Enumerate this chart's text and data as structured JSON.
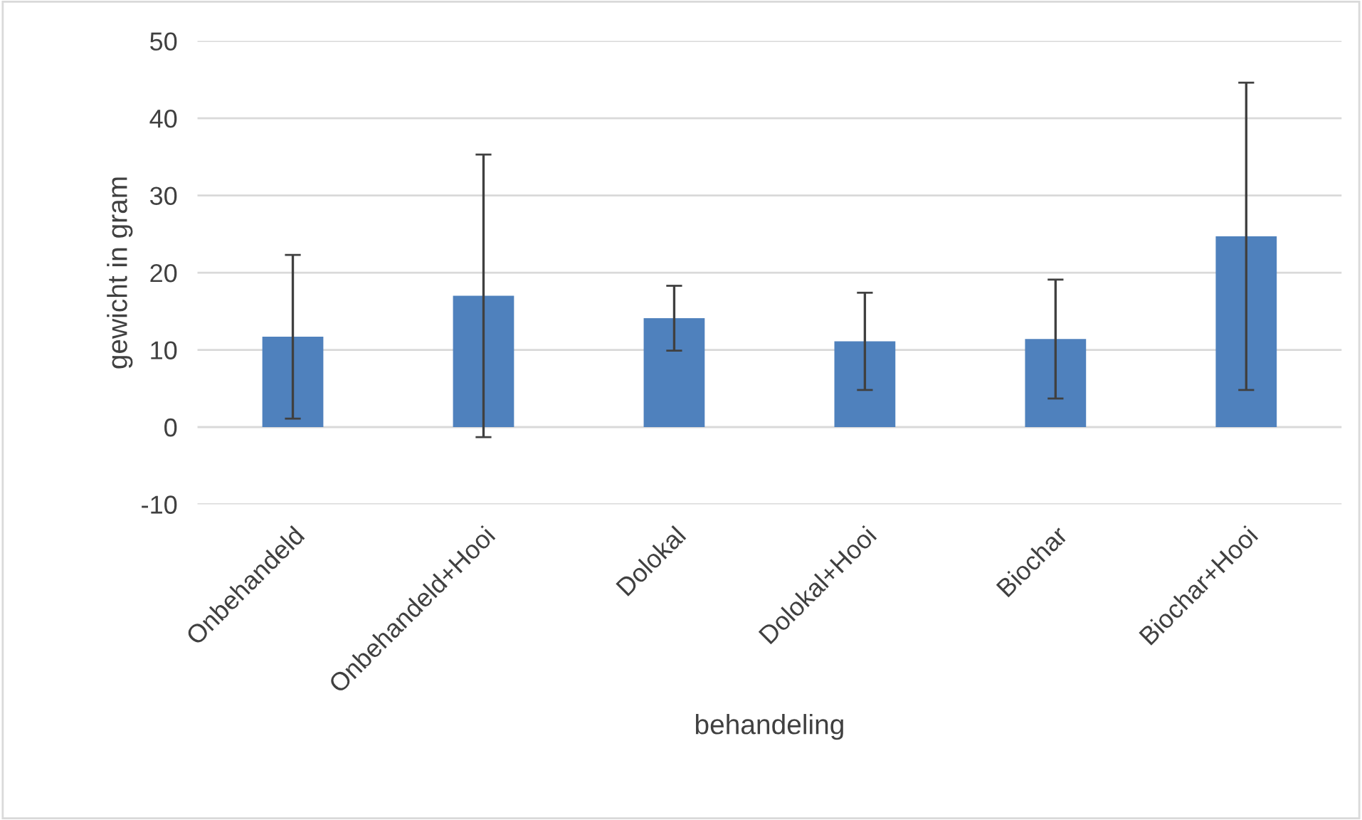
{
  "chart_data": {
    "type": "bar",
    "xlabel": "behandeling",
    "ylabel": "gewicht in gram",
    "categories": [
      "Onbehandeld",
      "Onbehandeld+Hooi",
      "Dolokal",
      "Dolokal+Hooi",
      "Biochar",
      "Biochar+Hooi"
    ],
    "values": [
      11.7,
      17.0,
      14.1,
      11.1,
      11.4,
      24.7
    ],
    "errors": [
      10.6,
      18.3,
      4.2,
      6.3,
      7.7,
      19.9
    ],
    "color": "#4f81bd",
    "ylim": [
      -10,
      50
    ],
    "yticks": [
      -10,
      0,
      10,
      20,
      30,
      40,
      50
    ],
    "grid": "y",
    "legend": false
  }
}
